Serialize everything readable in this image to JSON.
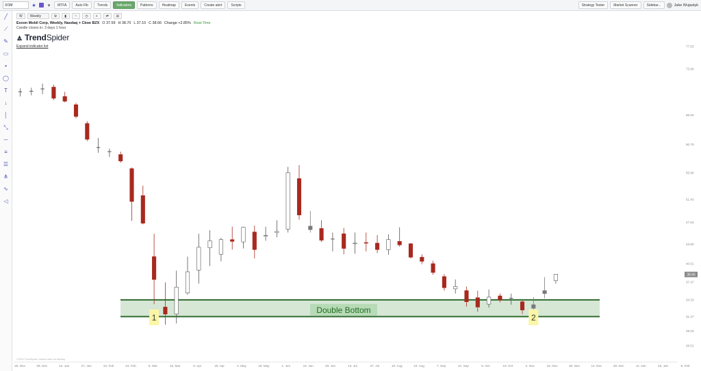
{
  "toolbar": {
    "ticker": "XOM",
    "timeframe": "Weekly",
    "buttons": [
      "MTFA",
      "Auto Fib",
      "Trends",
      "Indicators",
      "Patterns",
      "Heatmap",
      "Events",
      "Create alert",
      "Scripts"
    ],
    "active_button": "Indicators",
    "right_buttons": [
      "Strategy Tester",
      "Market Scanner",
      "Sidebar..."
    ],
    "user": "Jake Wujastyk"
  },
  "info": {
    "symbol_name": "Exxon Mobil Corp, Weekly, Nasdaq + Cboe BZX",
    "open": "O 37.59",
    "high": "H 38.70",
    "low": "L 37.10",
    "close": "C 38.66",
    "change": "Change +2.85%",
    "realtime": "Real-Time",
    "candle_closes": "Candle closes in: 3 days 1 hour",
    "logo_bold": "Trend",
    "logo_light": "Spider",
    "expand": "Expand indicator list",
    "tf_buttons": [
      "W"
    ]
  },
  "colors": {
    "bear": "#a8291e",
    "bull_fill": "#ffffff",
    "bull_stroke": "#555555",
    "neutral": "#7a7a7a",
    "band_fill": "#cfe3cf",
    "band_line": "#2f6b2f",
    "price_tag": "#888888",
    "marker_bg": "#fbf6a6"
  },
  "chart_data": {
    "type": "candlestick",
    "y_ticks": [
      "77.53",
      "73.68",
      "65.83",
      "60.79",
      "55.96",
      "51.43",
      "47.53",
      "43.80",
      "40.51",
      "37.37",
      "34.33",
      "31.47",
      "29.03",
      "26.51"
    ],
    "x_ticks": [
      "26. Nov",
      "09. Dec",
      "13. Jan",
      "27. Jan",
      "10. Feb",
      "24. Feb",
      "9. Mar",
      "23. Mar",
      "6. Apr",
      "20. Apr",
      "4. May",
      "18. May",
      "1. Jun",
      "15. Jun",
      "29. Jun",
      "13. Jul",
      "27. Jul",
      "10. Aug",
      "24. Aug",
      "7. Sep",
      "21. Sep",
      "5. Oct",
      "19. Oct",
      "2. Nov",
      "16. Nov",
      "30. Nov",
      "14. Dec",
      "28. Dec",
      "11. Jan",
      "25. Jan",
      "8. Feb"
    ],
    "current_price": "38.66",
    "band": {
      "low": 31.47,
      "high": 34.33,
      "label": "Double Bottom"
    },
    "markers": [
      {
        "label": "1",
        "at": 12
      },
      {
        "label": "2",
        "at": 46
      }
    ],
    "watermark": "©2020 TrendSpider. Market data via Nasdaq",
    "candles": [
      {
        "o": 69.8,
        "h": 70.4,
        "l": 69.0,
        "c": 69.7,
        "d": "n"
      },
      {
        "o": 69.9,
        "h": 70.5,
        "l": 69.2,
        "c": 69.8,
        "d": "n"
      },
      {
        "o": 70.2,
        "h": 71.2,
        "l": 69.4,
        "c": 70.3,
        "d": "n"
      },
      {
        "o": 70.6,
        "h": 71.0,
        "l": 68.4,
        "c": 68.7,
        "d": "r"
      },
      {
        "o": 69.0,
        "h": 69.8,
        "l": 68.0,
        "c": 68.2,
        "d": "r"
      },
      {
        "o": 67.6,
        "h": 67.9,
        "l": 65.3,
        "c": 65.6,
        "d": "r"
      },
      {
        "o": 64.4,
        "h": 64.8,
        "l": 61.4,
        "c": 61.7,
        "d": "r"
      },
      {
        "o": 60.3,
        "h": 61.9,
        "l": 59.4,
        "c": 60.0,
        "d": "n"
      },
      {
        "o": 59.6,
        "h": 60.1,
        "l": 58.7,
        "c": 59.3,
        "d": "n"
      },
      {
        "o": 59.1,
        "h": 59.6,
        "l": 57.7,
        "c": 58.0,
        "d": "r"
      },
      {
        "o": 56.7,
        "h": 56.9,
        "l": 47.8,
        "c": 51.1,
        "d": "r"
      },
      {
        "o": 52.1,
        "h": 53.8,
        "l": 47.2,
        "c": 47.4,
        "d": "r"
      },
      {
        "o": 41.7,
        "h": 45.6,
        "l": 33.6,
        "c": 37.8,
        "d": "r"
      },
      {
        "o": 33.1,
        "h": 37.3,
        "l": 30.1,
        "c": 31.9,
        "d": "r"
      },
      {
        "o": 31.9,
        "h": 39.3,
        "l": 30.3,
        "c": 36.5,
        "d": "g"
      },
      {
        "o": 35.5,
        "h": 41.7,
        "l": 35.2,
        "c": 39.1,
        "d": "g"
      },
      {
        "o": 39.4,
        "h": 45.6,
        "l": 37.1,
        "c": 43.3,
        "d": "g"
      },
      {
        "o": 44.4,
        "h": 46.2,
        "l": 40.1,
        "c": 43.2,
        "d": "g"
      },
      {
        "o": 42.1,
        "h": 44.9,
        "l": 40.9,
        "c": 44.6,
        "d": "g"
      },
      {
        "o": 44.6,
        "h": 46.8,
        "l": 42.9,
        "c": 44.3,
        "d": "r"
      },
      {
        "o": 44.2,
        "h": 46.8,
        "l": 43.1,
        "c": 46.7,
        "d": "g"
      },
      {
        "o": 45.9,
        "h": 47.0,
        "l": 41.4,
        "c": 42.9,
        "d": "r"
      },
      {
        "o": 45.2,
        "h": 46.8,
        "l": 44.4,
        "c": 45.3,
        "d": "g"
      },
      {
        "o": 45.8,
        "h": 47.9,
        "l": 45.0,
        "c": 46.0,
        "d": "g"
      },
      {
        "o": 46.4,
        "h": 57.0,
        "l": 45.8,
        "c": 56.0,
        "d": "g"
      },
      {
        "o": 55.0,
        "h": 57.3,
        "l": 48.0,
        "c": 48.8,
        "d": "r"
      },
      {
        "o": 46.9,
        "h": 49.5,
        "l": 45.8,
        "c": 46.3,
        "d": "o"
      },
      {
        "o": 46.5,
        "h": 47.9,
        "l": 44.2,
        "c": 44.5,
        "d": "r"
      },
      {
        "o": 44.6,
        "h": 45.8,
        "l": 42.6,
        "c": 44.7,
        "d": "n"
      },
      {
        "o": 45.6,
        "h": 46.6,
        "l": 42.1,
        "c": 43.1,
        "d": "r"
      },
      {
        "o": 43.9,
        "h": 45.8,
        "l": 42.2,
        "c": 44.0,
        "d": "g"
      },
      {
        "o": 44.1,
        "h": 45.8,
        "l": 42.6,
        "c": 44.0,
        "d": "r"
      },
      {
        "o": 44.0,
        "h": 45.4,
        "l": 42.3,
        "c": 42.9,
        "d": "r"
      },
      {
        "o": 42.9,
        "h": 45.5,
        "l": 42.0,
        "c": 44.6,
        "d": "g"
      },
      {
        "o": 44.3,
        "h": 46.7,
        "l": 43.4,
        "c": 43.7,
        "d": "r"
      },
      {
        "o": 43.9,
        "h": 44.0,
        "l": 41.4,
        "c": 41.6,
        "d": "r"
      },
      {
        "o": 41.6,
        "h": 42.1,
        "l": 40.4,
        "c": 40.9,
        "d": "r"
      },
      {
        "o": 40.5,
        "h": 41.0,
        "l": 38.6,
        "c": 39.0,
        "d": "r"
      },
      {
        "o": 38.3,
        "h": 38.7,
        "l": 35.9,
        "c": 36.4,
        "d": "r"
      },
      {
        "o": 36.2,
        "h": 37.8,
        "l": 35.4,
        "c": 36.6,
        "d": "g"
      },
      {
        "o": 35.9,
        "h": 36.6,
        "l": 33.2,
        "c": 34.0,
        "d": "r"
      },
      {
        "o": 34.7,
        "h": 35.9,
        "l": 32.3,
        "c": 33.1,
        "d": "r"
      },
      {
        "o": 33.6,
        "h": 36.1,
        "l": 33.0,
        "c": 34.8,
        "d": "g"
      },
      {
        "o": 35.0,
        "h": 35.4,
        "l": 33.9,
        "c": 34.3,
        "d": "r"
      },
      {
        "o": 34.5,
        "h": 35.4,
        "l": 33.5,
        "c": 34.6,
        "d": "n"
      },
      {
        "o": 34.0,
        "h": 34.2,
        "l": 31.9,
        "c": 32.6,
        "d": "r"
      },
      {
        "o": 32.9,
        "h": 34.8,
        "l": 32.3,
        "c": 33.5,
        "d": "o"
      },
      {
        "o": 35.4,
        "h": 38.2,
        "l": 34.6,
        "c": 35.9,
        "d": "o"
      },
      {
        "o": 37.6,
        "h": 38.7,
        "l": 37.1,
        "c": 38.7,
        "d": "g"
      }
    ]
  }
}
